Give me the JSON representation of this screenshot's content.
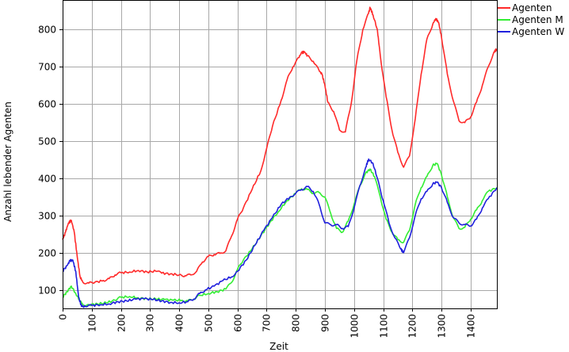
{
  "chart_data": {
    "type": "line",
    "title": "",
    "xlabel": "Zeit",
    "ylabel": "Anzahl lebender Agenten",
    "xlim": [
      0,
      1490
    ],
    "ylim": [
      50,
      880
    ],
    "x_ticks": [
      0,
      100,
      200,
      300,
      400,
      500,
      600,
      700,
      800,
      900,
      1000,
      1100,
      1200,
      1300,
      1400
    ],
    "y_ticks": [
      100,
      200,
      300,
      400,
      500,
      600,
      700,
      800
    ],
    "grid": true,
    "legend_position": "top-right",
    "series": [
      {
        "name": "Agenten",
        "color": "#ff2a2a",
        "points": [
          [
            0,
            235
          ],
          [
            10,
            255
          ],
          [
            20,
            280
          ],
          [
            30,
            287
          ],
          [
            40,
            255
          ],
          [
            50,
            190
          ],
          [
            60,
            135
          ],
          [
            70,
            120
          ],
          [
            90,
            118
          ],
          [
            110,
            120
          ],
          [
            140,
            125
          ],
          [
            160,
            130
          ],
          [
            180,
            140
          ],
          [
            200,
            146
          ],
          [
            230,
            148
          ],
          [
            260,
            152
          ],
          [
            290,
            148
          ],
          [
            320,
            150
          ],
          [
            340,
            145
          ],
          [
            370,
            143
          ],
          [
            400,
            140
          ],
          [
            420,
            138
          ],
          [
            440,
            140
          ],
          [
            460,
            150
          ],
          [
            480,
            175
          ],
          [
            500,
            190
          ],
          [
            520,
            195
          ],
          [
            540,
            198
          ],
          [
            560,
            205
          ],
          [
            580,
            245
          ],
          [
            600,
            290
          ],
          [
            620,
            320
          ],
          [
            650,
            370
          ],
          [
            680,
            420
          ],
          [
            700,
            480
          ],
          [
            720,
            540
          ],
          [
            750,
            610
          ],
          [
            770,
            665
          ],
          [
            790,
            700
          ],
          [
            810,
            725
          ],
          [
            820,
            738
          ],
          [
            830,
            740
          ],
          [
            840,
            730
          ],
          [
            860,
            715
          ],
          [
            880,
            690
          ],
          [
            890,
            680
          ],
          [
            900,
            650
          ],
          [
            910,
            605
          ],
          [
            930,
            580
          ],
          [
            950,
            530
          ],
          [
            970,
            525
          ],
          [
            990,
            600
          ],
          [
            1010,
            720
          ],
          [
            1030,
            800
          ],
          [
            1050,
            845
          ],
          [
            1055,
            860
          ],
          [
            1065,
            840
          ],
          [
            1080,
            800
          ],
          [
            1090,
            730
          ],
          [
            1110,
            620
          ],
          [
            1130,
            530
          ],
          [
            1150,
            470
          ],
          [
            1170,
            430
          ],
          [
            1190,
            460
          ],
          [
            1210,
            560
          ],
          [
            1230,
            680
          ],
          [
            1250,
            775
          ],
          [
            1270,
            815
          ],
          [
            1280,
            830
          ],
          [
            1290,
            820
          ],
          [
            1300,
            780
          ],
          [
            1320,
            680
          ],
          [
            1340,
            610
          ],
          [
            1360,
            555
          ],
          [
            1380,
            550
          ],
          [
            1400,
            565
          ],
          [
            1420,
            605
          ],
          [
            1440,
            650
          ],
          [
            1460,
            700
          ],
          [
            1480,
            740
          ],
          [
            1490,
            748
          ]
        ]
      },
      {
        "name": "Agenten M",
        "color": "#33ee33",
        "points": [
          [
            0,
            80
          ],
          [
            15,
            95
          ],
          [
            30,
            110
          ],
          [
            45,
            90
          ],
          [
            60,
            70
          ],
          [
            70,
            60
          ],
          [
            90,
            60
          ],
          [
            120,
            62
          ],
          [
            150,
            65
          ],
          [
            180,
            72
          ],
          [
            200,
            80
          ],
          [
            230,
            82
          ],
          [
            260,
            78
          ],
          [
            290,
            76
          ],
          [
            320,
            75
          ],
          [
            350,
            74
          ],
          [
            380,
            72
          ],
          [
            410,
            72
          ],
          [
            430,
            70
          ],
          [
            450,
            75
          ],
          [
            470,
            85
          ],
          [
            500,
            90
          ],
          [
            530,
            95
          ],
          [
            560,
            102
          ],
          [
            580,
            120
          ],
          [
            600,
            155
          ],
          [
            620,
            180
          ],
          [
            650,
            210
          ],
          [
            680,
            245
          ],
          [
            710,
            280
          ],
          [
            740,
            310
          ],
          [
            770,
            340
          ],
          [
            800,
            360
          ],
          [
            820,
            372
          ],
          [
            840,
            370
          ],
          [
            860,
            360
          ],
          [
            880,
            362
          ],
          [
            900,
            350
          ],
          [
            920,
            305
          ],
          [
            940,
            265
          ],
          [
            960,
            255
          ],
          [
            980,
            285
          ],
          [
            1000,
            330
          ],
          [
            1020,
            380
          ],
          [
            1040,
            415
          ],
          [
            1055,
            425
          ],
          [
            1070,
            405
          ],
          [
            1090,
            350
          ],
          [
            1110,
            290
          ],
          [
            1130,
            255
          ],
          [
            1150,
            235
          ],
          [
            1170,
            228
          ],
          [
            1190,
            260
          ],
          [
            1210,
            330
          ],
          [
            1230,
            375
          ],
          [
            1250,
            405
          ],
          [
            1270,
            435
          ],
          [
            1285,
            440
          ],
          [
            1300,
            410
          ],
          [
            1320,
            350
          ],
          [
            1340,
            295
          ],
          [
            1360,
            265
          ],
          [
            1380,
            268
          ],
          [
            1400,
            290
          ],
          [
            1420,
            315
          ],
          [
            1440,
            340
          ],
          [
            1460,
            365
          ],
          [
            1490,
            375
          ]
        ]
      },
      {
        "name": "Agenten W",
        "color": "#2020dd",
        "points": [
          [
            0,
            150
          ],
          [
            15,
            165
          ],
          [
            25,
            178
          ],
          [
            35,
            180
          ],
          [
            45,
            150
          ],
          [
            55,
            80
          ],
          [
            65,
            55
          ],
          [
            80,
            55
          ],
          [
            100,
            58
          ],
          [
            130,
            60
          ],
          [
            160,
            62
          ],
          [
            190,
            68
          ],
          [
            220,
            70
          ],
          [
            250,
            75
          ],
          [
            280,
            76
          ],
          [
            310,
            74
          ],
          [
            340,
            70
          ],
          [
            370,
            66
          ],
          [
            400,
            65
          ],
          [
            430,
            68
          ],
          [
            450,
            75
          ],
          [
            470,
            90
          ],
          [
            490,
            100
          ],
          [
            520,
            110
          ],
          [
            550,
            125
          ],
          [
            580,
            135
          ],
          [
            600,
            150
          ],
          [
            630,
            180
          ],
          [
            660,
            220
          ],
          [
            690,
            260
          ],
          [
            720,
            295
          ],
          [
            750,
            330
          ],
          [
            780,
            350
          ],
          [
            800,
            360
          ],
          [
            820,
            370
          ],
          [
            840,
            378
          ],
          [
            860,
            365
          ],
          [
            880,
            330
          ],
          [
            900,
            280
          ],
          [
            920,
            275
          ],
          [
            940,
            275
          ],
          [
            960,
            265
          ],
          [
            980,
            270
          ],
          [
            1000,
            320
          ],
          [
            1020,
            380
          ],
          [
            1040,
            430
          ],
          [
            1050,
            452
          ],
          [
            1065,
            440
          ],
          [
            1080,
            400
          ],
          [
            1100,
            340
          ],
          [
            1120,
            280
          ],
          [
            1140,
            240
          ],
          [
            1160,
            210
          ],
          [
            1170,
            200
          ],
          [
            1190,
            240
          ],
          [
            1210,
            300
          ],
          [
            1230,
            345
          ],
          [
            1250,
            365
          ],
          [
            1270,
            385
          ],
          [
            1285,
            390
          ],
          [
            1300,
            375
          ],
          [
            1320,
            335
          ],
          [
            1340,
            295
          ],
          [
            1360,
            280
          ],
          [
            1380,
            275
          ],
          [
            1400,
            272
          ],
          [
            1420,
            290
          ],
          [
            1440,
            320
          ],
          [
            1460,
            345
          ],
          [
            1490,
            375
          ]
        ]
      }
    ]
  }
}
